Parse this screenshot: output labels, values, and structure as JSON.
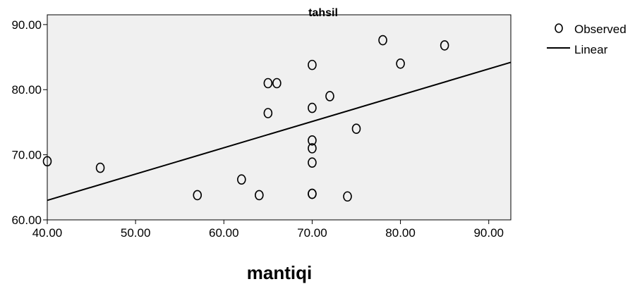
{
  "chart_data": {
    "type": "scatter",
    "title": "tahsil",
    "xlabel": "mantiqi",
    "ylabel": "",
    "xlim": [
      40,
      92.5
    ],
    "ylim": [
      60,
      91.5
    ],
    "xticks": [
      "40.00",
      "50.00",
      "60.00",
      "70.00",
      "80.00",
      "90.00"
    ],
    "yticks": [
      "60.00",
      "70.00",
      "80.00",
      "90.00"
    ],
    "xtick_values": [
      40,
      50,
      60,
      70,
      80,
      90
    ],
    "ytick_values": [
      60,
      70,
      80,
      90
    ],
    "grid": false,
    "legend_position": "top-right",
    "series": [
      {
        "name": "Observed",
        "kind": "points",
        "x": [
          40,
          46,
          57,
          62,
          64,
          65,
          65,
          66,
          70,
          70,
          70,
          70,
          70,
          70,
          70,
          72,
          74,
          75,
          78,
          80,
          85
        ],
        "y": [
          69,
          68,
          63.8,
          66.2,
          63.8,
          81,
          76.4,
          81,
          83.8,
          77.2,
          72.2,
          71,
          68.8,
          64,
          64,
          79,
          63.6,
          74,
          87.6,
          84,
          86.8
        ]
      },
      {
        "name": "Linear",
        "kind": "line",
        "x": [
          40,
          92.5
        ],
        "y": [
          63,
          84.2
        ]
      }
    ],
    "colors": {
      "plot_background": "#f0f0f0",
      "axis": "#000000",
      "marker_stroke": "#000000",
      "line": "#000000"
    }
  }
}
